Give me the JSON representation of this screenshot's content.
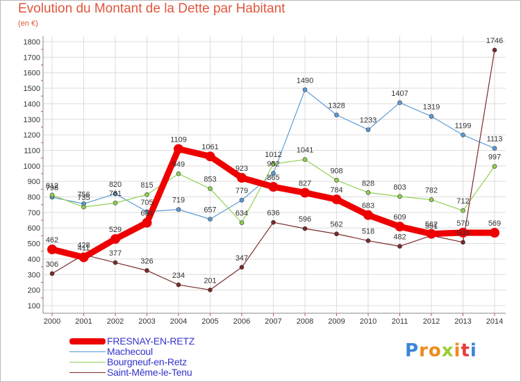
{
  "chart_data": {
    "type": "line",
    "title": "Evolution du Montant de la Dette par Habitant",
    "subtitle": "(en €)",
    "x": [
      "2000",
      "2001",
      "2002",
      "2003",
      "2004",
      "2005",
      "2006",
      "2007",
      "2008",
      "2009",
      "2010",
      "2011",
      "2012",
      "2013",
      "2014"
    ],
    "yticks": [
      100,
      200,
      300,
      400,
      500,
      600,
      700,
      800,
      900,
      1000,
      1100,
      1200,
      1300,
      1400,
      1500,
      1600,
      1700,
      1800
    ],
    "ylim": [
      100,
      1800
    ],
    "grid": true,
    "legend_position": "bottom-left",
    "series": [
      {
        "name": "FRESNAY-EN-RETZ",
        "color": "#ee0000",
        "values": [
          462,
          411,
          529,
          634,
          1109,
          1061,
          923,
          865,
          827,
          784,
          683,
          609,
          562,
          570,
          569
        ],
        "labels": [
          "462",
          "411",
          "529",
          "634",
          "1109",
          "1061",
          "923",
          "865",
          "827",
          "784",
          "683",
          "609",
          "562",
          "570",
          "569"
        ]
      },
      {
        "name": "Machecoul",
        "color": "#5b9bd5",
        "values": [
          798,
          756,
          820,
          705,
          719,
          657,
          779,
          952,
          1490,
          1328,
          1233,
          1407,
          1319,
          1199,
          1113
        ],
        "labels": [
          "798",
          "756",
          "820",
          "705",
          "719",
          "657",
          "779",
          "952",
          "1490",
          "1328",
          "1233",
          "1407",
          "1319",
          "1199",
          "1113"
        ]
      },
      {
        "name": "Bourgneuf-en-Retz",
        "color": "#8fd14f",
        "values": [
          812,
          735,
          761,
          815,
          949,
          853,
          634,
          1012,
          1041,
          908,
          828,
          803,
          782,
          712,
          997
        ],
        "labels": [
          "812",
          "735",
          "761",
          "815",
          "949",
          "853",
          "634",
          "1012",
          "1041",
          "908",
          "828",
          "803",
          "782",
          "712",
          "997"
        ]
      },
      {
        "name": "Saint-Même-le-Tenu",
        "color": "#7b2a2a",
        "values": [
          306,
          428,
          377,
          326,
          234,
          201,
          347,
          636,
          596,
          562,
          518,
          482,
          551,
          508,
          1746
        ],
        "labels": [
          "306",
          "428",
          "377",
          "326",
          "234",
          "201",
          "347",
          "636",
          "596",
          "562",
          "518",
          "482",
          "551",
          "508",
          "1746"
        ]
      }
    ]
  },
  "logo": {
    "l1": "P",
    "l2": "r",
    "l3": "o",
    "l4": "x",
    "l5": "i",
    "l6": "t",
    "l7": "i"
  }
}
